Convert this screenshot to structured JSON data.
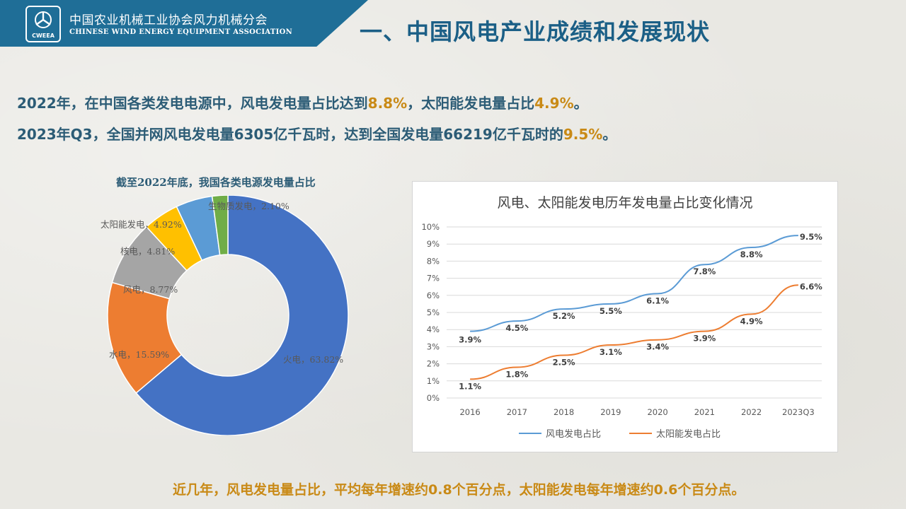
{
  "header": {
    "org_cn": "中国农业机械工业协会风力机械分会",
    "org_en": "CHINESE WIND ENERGY EQUIPMENT ASSOCIATION",
    "logo_text": "CWEEA",
    "title": "一、中国风电产业成绩和发展现状"
  },
  "summary": {
    "line1_a": "2022年，在中国各类发电电源中，风电发电量占比达到",
    "line1_b": "8.8%",
    "line1_c": "，太阳能发电量占比",
    "line1_d": "4.9%",
    "line1_e": "。",
    "line2_a": "2023年Q3，全国并网风电发电量6305亿千瓦时，达到全国发电量66219亿千瓦时的",
    "line2_b": "9.5%",
    "line2_c": "。"
  },
  "footer": "近几年，风电发电量占比，平均每年增速约0.8个百分点，太阳能发电每年增速约0.6个百分点。",
  "colors": {
    "brand_blue": "#1f6e97",
    "highlight": "#c98a16",
    "text": "#2c5c76"
  },
  "chart_data": [
    {
      "type": "pie",
      "subtype": "donut",
      "title": "截至2022年底，我国各类电源发电量占比",
      "slices": [
        {
          "name": "火电",
          "value": 63.82,
          "label": "火电，63.82%",
          "color": "#4472c4"
        },
        {
          "name": "水电",
          "value": 15.59,
          "label": "水电，15.59%",
          "color": "#ed7d31"
        },
        {
          "name": "风电",
          "value": 8.77,
          "label": "风电，8.77%",
          "color": "#a5a5a5"
        },
        {
          "name": "核电",
          "value": 4.81,
          "label": "核电，4.81%",
          "color": "#ffc000"
        },
        {
          "name": "太阳能发电",
          "value": 4.92,
          "label": "太阳能发电，4.92%",
          "color": "#5b9bd5"
        },
        {
          "name": "生物质发电",
          "value": 2.1,
          "label": "生物质发电，2.10%",
          "color": "#70ad47"
        }
      ]
    },
    {
      "type": "line",
      "title": "风电、太阳能发电历年发电量占比变化情况",
      "categories": [
        "2016",
        "2017",
        "2018",
        "2019",
        "2020",
        "2021",
        "2022",
        "2023Q3"
      ],
      "ylim": [
        0,
        10
      ],
      "yticks": [
        "0%",
        "1%",
        "2%",
        "3%",
        "4%",
        "5%",
        "6%",
        "7%",
        "8%",
        "9%",
        "10%"
      ],
      "grid": true,
      "legend": "bottom",
      "series": [
        {
          "name": "风电发电占比",
          "color": "#5b9bd5",
          "values": [
            3.9,
            4.5,
            5.2,
            5.5,
            6.1,
            7.8,
            8.8,
            9.5
          ],
          "labels": [
            "3.9%",
            "4.5%",
            "5.2%",
            "5.5%",
            "6.1%",
            "7.8%",
            "8.8%",
            "9.5%"
          ]
        },
        {
          "name": "太阳能发电占比",
          "color": "#ed7d31",
          "values": [
            1.1,
            1.8,
            2.5,
            3.1,
            3.4,
            3.9,
            4.9,
            6.6
          ],
          "labels": [
            "1.1%",
            "1.8%",
            "2.5%",
            "3.1%",
            "3.4%",
            "3.9%",
            "4.9%",
            "6.6%"
          ]
        }
      ]
    }
  ]
}
